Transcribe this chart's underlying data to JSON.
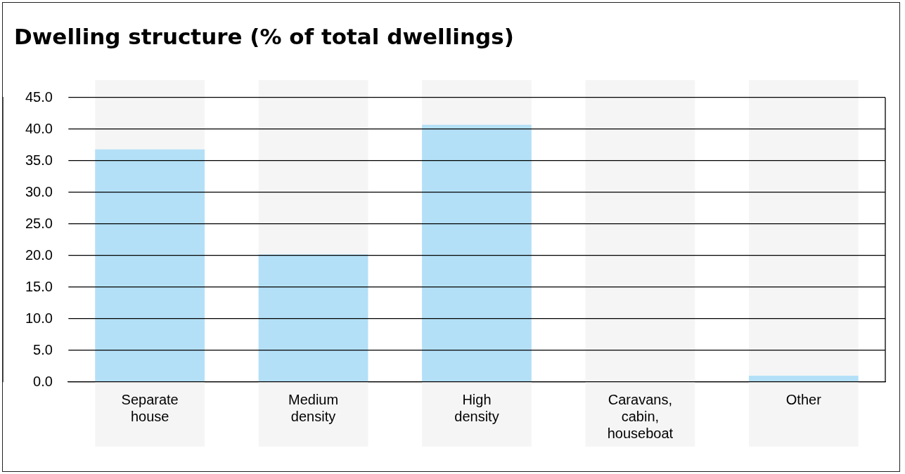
{
  "chart_data": {
    "type": "bar",
    "title": "Dwelling structure (% of total dwellings)",
    "categories": [
      "Separate house",
      "Medium density",
      "High density",
      "Caravans, cabin, houseboat",
      "Other"
    ],
    "values": [
      36.8,
      20.2,
      40.7,
      0,
      1.0
    ],
    "color": "#b3e0f7",
    "ylim": [
      0,
      45
    ],
    "yticks": [
      {
        "value": 0,
        "label": "0.0"
      },
      {
        "value": 5,
        "label": "5.0"
      },
      {
        "value": 10,
        "label": "10.0"
      },
      {
        "value": 15,
        "label": "15.0"
      },
      {
        "value": 20,
        "label": "20.0"
      },
      {
        "value": 25,
        "label": "25.0"
      },
      {
        "value": 30,
        "label": "30.0"
      },
      {
        "value": 35,
        "label": "35.0"
      },
      {
        "value": 40,
        "label": "40.0"
      },
      {
        "value": 45,
        "label": "45.0"
      }
    ],
    "grid": "y",
    "bands": [
      {
        "axis": "x",
        "from": "Separate house",
        "to": "Separate house",
        "color": "#f5f5f5"
      },
      {
        "axis": "x",
        "from": "Medium density",
        "to": "Medium density",
        "color": "#f5f5f5"
      },
      {
        "axis": "x",
        "from": "High density",
        "to": "High density",
        "color": "#f5f5f5"
      },
      {
        "axis": "x",
        "from": "Caravans, cabin, houseboat",
        "to": "Caravans, cabin, houseboat",
        "color": "#f5f5f5"
      },
      {
        "axis": "x",
        "from": "Other",
        "to": "Other",
        "color": "#f5f5f5"
      }
    ]
  }
}
